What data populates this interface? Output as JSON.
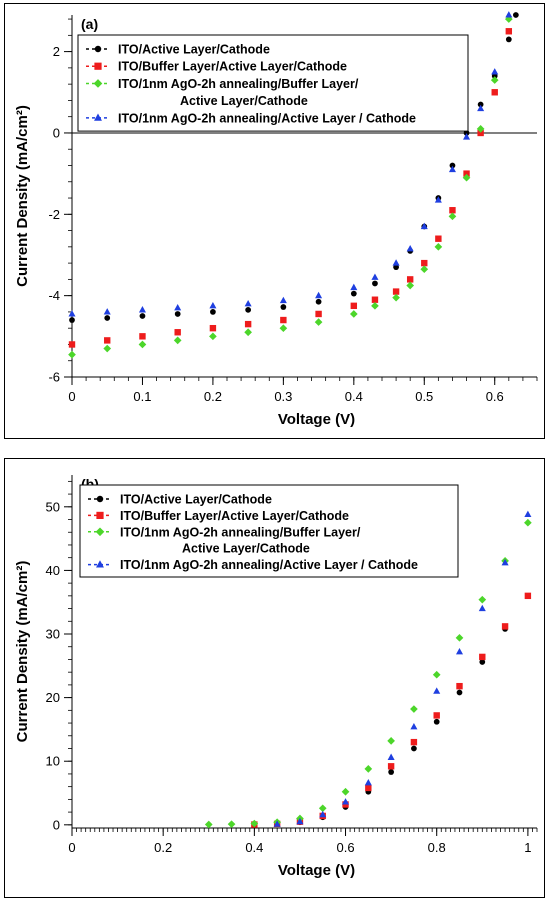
{
  "chart_data": [
    {
      "type": "scatter",
      "panel_label": "(a)",
      "title": "",
      "xlabel": "Voltage (V)",
      "ylabel": "Current Density (mA/cm²)",
      "xlim": [
        0,
        0.66
      ],
      "ylim": [
        -6,
        2.9
      ],
      "xticks": [
        0,
        0.1,
        0.2,
        0.3,
        0.4,
        0.5,
        0.6
      ],
      "yticks": [
        -6,
        -4,
        -2,
        0,
        2
      ],
      "xtick_labels": [
        "0",
        "0.1",
        "0.2",
        "0.3",
        "0.4",
        "0.5",
        "0.6"
      ],
      "ytick_labels": [
        "-6",
        "-4",
        "-2",
        "0",
        "2"
      ],
      "zero_line": true,
      "legend_position": "top-left",
      "series": [
        {
          "name": "ITO/Active Layer/Cathode",
          "color": "#000000",
          "marker": "circle",
          "x": [
            0,
            0.05,
            0.1,
            0.15,
            0.2,
            0.25,
            0.3,
            0.35,
            0.4,
            0.43,
            0.46,
            0.48,
            0.5,
            0.52,
            0.54,
            0.56,
            0.58,
            0.6,
            0.62,
            0.63
          ],
          "y": [
            -4.6,
            -4.55,
            -4.5,
            -4.45,
            -4.4,
            -4.35,
            -4.28,
            -4.15,
            -3.95,
            -3.7,
            -3.3,
            -2.9,
            -2.3,
            -1.6,
            -0.8,
            0.0,
            0.7,
            1.4,
            2.3,
            2.9
          ]
        },
        {
          "name": "ITO/Buffer Layer/Active Layer/Cathode",
          "color": "#ee1c1c",
          "marker": "square",
          "x": [
            0,
            0.05,
            0.1,
            0.15,
            0.2,
            0.25,
            0.3,
            0.35,
            0.4,
            0.43,
            0.46,
            0.48,
            0.5,
            0.52,
            0.54,
            0.56,
            0.58,
            0.6,
            0.62
          ],
          "y": [
            -5.2,
            -5.1,
            -5.0,
            -4.9,
            -4.8,
            -4.7,
            -4.6,
            -4.45,
            -4.25,
            -4.1,
            -3.9,
            -3.6,
            -3.2,
            -2.6,
            -1.9,
            -1.0,
            0.0,
            1.0,
            2.5
          ]
        },
        {
          "name": "ITO/1nm AgO-2h annealing/Buffer Layer/\nActive Layer/Cathode",
          "color": "#4cd62a",
          "marker": "diamond",
          "x": [
            0,
            0.05,
            0.1,
            0.15,
            0.2,
            0.25,
            0.3,
            0.35,
            0.4,
            0.43,
            0.46,
            0.48,
            0.5,
            0.52,
            0.54,
            0.56,
            0.58,
            0.6,
            0.62
          ],
          "y": [
            -5.45,
            -5.3,
            -5.2,
            -5.1,
            -5.0,
            -4.9,
            -4.8,
            -4.65,
            -4.45,
            -4.25,
            -4.05,
            -3.75,
            -3.35,
            -2.8,
            -2.05,
            -1.1,
            0.1,
            1.3,
            2.8
          ]
        },
        {
          "name": "ITO/1nm AgO-2h annealing/Active Layer / Cathode",
          "color": "#1f3fe0",
          "marker": "triangle",
          "x": [
            0,
            0.05,
            0.1,
            0.15,
            0.2,
            0.25,
            0.3,
            0.35,
            0.4,
            0.43,
            0.46,
            0.48,
            0.5,
            0.52,
            0.54,
            0.56,
            0.58,
            0.6,
            0.62
          ],
          "y": [
            -4.45,
            -4.4,
            -4.35,
            -4.3,
            -4.25,
            -4.2,
            -4.12,
            -4.0,
            -3.8,
            -3.55,
            -3.2,
            -2.85,
            -2.3,
            -1.65,
            -0.9,
            -0.1,
            0.6,
            1.5,
            2.9
          ]
        }
      ]
    },
    {
      "type": "scatter",
      "panel_label": "(b)",
      "title": "",
      "xlabel": "Voltage (V)",
      "ylabel": "Current Density (mA/cm²)",
      "xlim": [
        0,
        1.02
      ],
      "ylim": [
        -0.5,
        55
      ],
      "xticks": [
        0,
        0.2,
        0.4,
        0.6,
        0.8,
        1
      ],
      "yticks": [
        0,
        10,
        20,
        30,
        40,
        50
      ],
      "xtick_labels": [
        "0",
        "0.2",
        "0.4",
        "0.6",
        "0.8",
        "1"
      ],
      "ytick_labels": [
        "0",
        "10",
        "20",
        "30",
        "40",
        "50"
      ],
      "zero_line": false,
      "legend_position": "top-left",
      "series": [
        {
          "name": "ITO/Active Layer/Cathode",
          "color": "#000000",
          "marker": "circle",
          "x": [
            0.4,
            0.45,
            0.5,
            0.55,
            0.6,
            0.65,
            0.7,
            0.75,
            0.8,
            0.85,
            0.9,
            0.95,
            1.0
          ],
          "y": [
            0.05,
            0.15,
            0.4,
            1.2,
            2.8,
            5.2,
            8.3,
            12.0,
            16.2,
            20.8,
            25.6,
            30.8,
            36.0
          ]
        },
        {
          "name": "ITO/Buffer Layer/Active Layer/Cathode",
          "color": "#ee1c1c",
          "marker": "square",
          "x": [
            0.4,
            0.45,
            0.5,
            0.55,
            0.6,
            0.65,
            0.7,
            0.75,
            0.8,
            0.85,
            0.9,
            0.95,
            1.0
          ],
          "y": [
            0.05,
            0.15,
            0.5,
            1.4,
            3.2,
            5.8,
            9.2,
            13.0,
            17.2,
            21.8,
            26.4,
            31.2,
            36.0
          ]
        },
        {
          "name": "ITO/1nm AgO-2h annealing/Buffer Layer/\nActive Layer/Cathode",
          "color": "#4cd62a",
          "marker": "diamond",
          "x": [
            0.3,
            0.35,
            0.4,
            0.45,
            0.5,
            0.55,
            0.6,
            0.65,
            0.7,
            0.75,
            0.8,
            0.85,
            0.9,
            0.95,
            1.0
          ],
          "y": [
            0.05,
            0.1,
            0.2,
            0.4,
            1.0,
            2.6,
            5.2,
            8.8,
            13.2,
            18.2,
            23.6,
            29.4,
            35.4,
            41.5,
            47.5
          ]
        },
        {
          "name": "ITO/1nm AgO-2h annealing/Active Layer / Cathode",
          "color": "#1f3fe0",
          "marker": "triangle",
          "x": [
            0.45,
            0.5,
            0.55,
            0.6,
            0.65,
            0.7,
            0.75,
            0.8,
            0.85,
            0.9,
            0.95,
            1.0
          ],
          "y": [
            0.1,
            0.5,
            1.6,
            3.6,
            6.6,
            10.6,
            15.4,
            21.0,
            27.2,
            34.0,
            41.2,
            48.8
          ]
        }
      ]
    }
  ]
}
